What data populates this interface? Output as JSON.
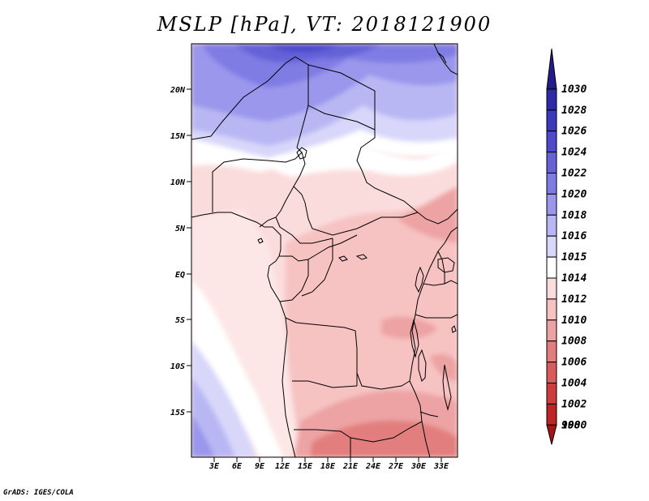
{
  "title": "MSLP [hPa], VT: 2018121900",
  "credit": "GrADS: IGES/COLA",
  "map": {
    "region": "Central & Southern Africa",
    "lat_labels": [
      "20N",
      "15N",
      "10N",
      "5N",
      "EQ",
      "5S",
      "10S",
      "15S"
    ],
    "lon_labels": [
      "3E",
      "6E",
      "9E",
      "12E",
      "15E",
      "18E",
      "21E",
      "24E",
      "27E",
      "30E",
      "33E"
    ]
  },
  "legend": {
    "levels": [
      "1030",
      "1028",
      "1026",
      "1024",
      "1022",
      "1020",
      "1018",
      "1016",
      "1015",
      "1014",
      "1012",
      "1010",
      "1008",
      "1006",
      "1004",
      "1002",
      "1000",
      "998"
    ],
    "colors": [
      "#221c8c",
      "#2e2aa6",
      "#3a38bb",
      "#4d4bcc",
      "#6562d8",
      "#7f7be4",
      "#9a97ec",
      "#b9b7f3",
      "#d8d7fa",
      "#ffffff",
      "#fbdcdc",
      "#f7c2c2",
      "#eda3a3",
      "#e27e7e",
      "#d85c5c",
      "#cc3d3d",
      "#bd2424",
      "#a31616"
    ]
  }
}
